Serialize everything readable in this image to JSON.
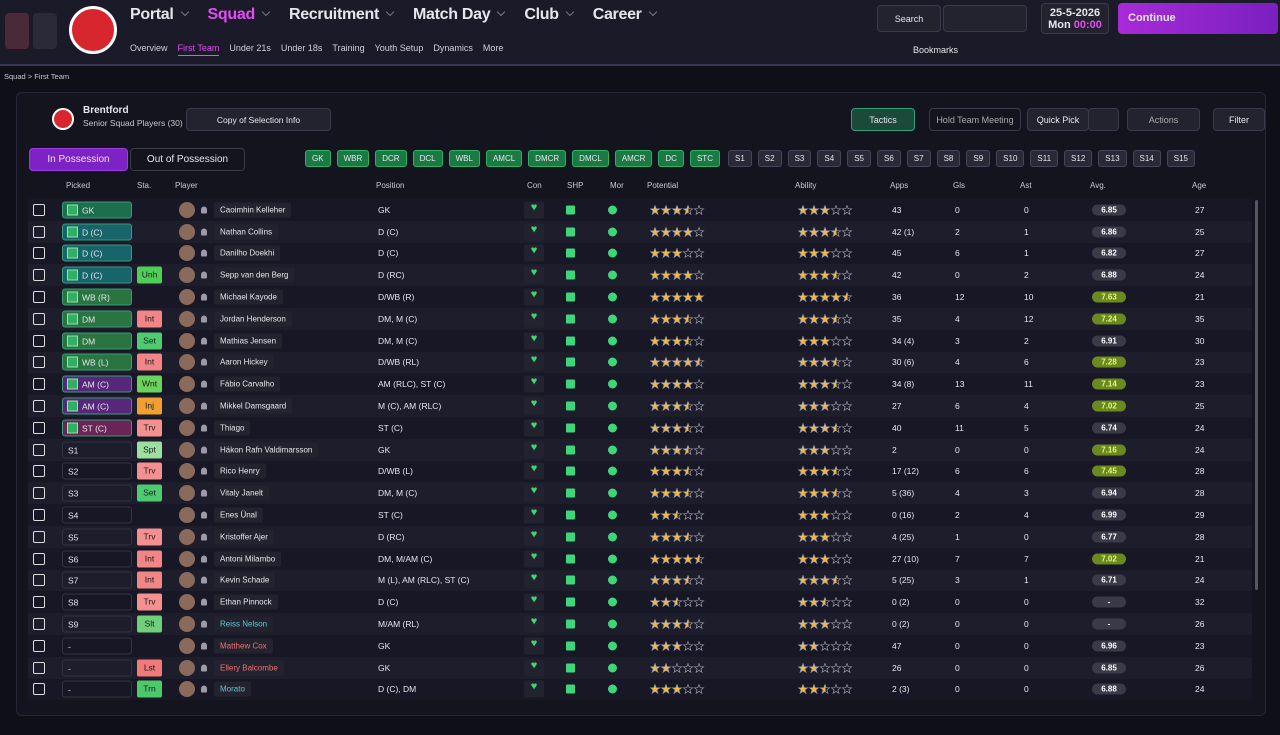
{
  "nav": {
    "menu": [
      "Portal",
      "Squad",
      "Recruitment",
      "Match Day",
      "Club",
      "Career"
    ],
    "submenu": [
      "Overview",
      "First Team",
      "Under 21s",
      "Under 18s",
      "Training",
      "Youth Setup",
      "Dynamics",
      "More"
    ],
    "search": "Search",
    "date": "25-5-2026",
    "day": "Mon",
    "time": "00:00",
    "continue": "Continue",
    "bookmarks": "Bookmarks"
  },
  "breadcrumb": [
    "Squad",
    "First Team"
  ],
  "team": {
    "name": "Brentford",
    "subtitle": "Senior Squad Players (30)",
    "selection": "Copy of Selection Info"
  },
  "actions": [
    "Tactics",
    "Hold Team Meeting",
    "Quick Pick",
    "Actions",
    "Filter"
  ],
  "tabs": [
    "In Possession",
    "Out of Possession"
  ],
  "formation": [
    "GK",
    "WBR",
    "DCR",
    "DCL",
    "WBL",
    "AMCL",
    "DMCR",
    "DMCL",
    "AMCR",
    "DC",
    "STC"
  ],
  "subs": [
    "S1",
    "S2",
    "S3",
    "S4",
    "S5",
    "S6",
    "S7",
    "S8",
    "S9",
    "S10",
    "S11",
    "S12",
    "S13",
    "S14",
    "S15"
  ],
  "columns": [
    "Picked",
    "Sta.",
    "Player",
    "Position",
    "Con",
    "SHP",
    "Mor",
    "Potential",
    "Ability",
    "Apps",
    "Gls",
    "Ast",
    "Avg.",
    "Age"
  ],
  "rows": [
    {
      "picked": "GK",
      "picked_color": "#1d6e4c",
      "player": "Caoimhin Kelleher",
      "position": "GK",
      "potential": 3.5,
      "ability": 3,
      "apps": "43",
      "gls": 0,
      "ast": 0,
      "avg": "6.85",
      "age": 27
    },
    {
      "picked": "D (C)",
      "picked_color": "#17646a",
      "player": "Nathan Collins",
      "position": "D (C)",
      "potential": 4,
      "ability": 3.5,
      "apps": "42 (1)",
      "gls": 2,
      "ast": 1,
      "avg": "6.86",
      "age": 25
    },
    {
      "picked": "D (C)",
      "picked_color": "#17646a",
      "player": "Danilho Doekhi",
      "position": "D (C)",
      "potential": 3,
      "ability": 3,
      "apps": "45",
      "gls": 6,
      "ast": 1,
      "avg": "6.82",
      "age": 27
    },
    {
      "picked": "D (C)",
      "picked_color": "#17646a",
      "sta": "Unh",
      "sta_color": "#4fcf55",
      "player": "Sepp van den Berg",
      "position": "D (RC)",
      "potential": 4,
      "ability": 3.5,
      "apps": "42",
      "gls": 0,
      "ast": 2,
      "avg": "6.88",
      "age": 24
    },
    {
      "picked": "WB (R)",
      "picked_color": "#2a7440",
      "player": "Michael Kayode",
      "position": "D/WB (R)",
      "potential": 5,
      "ability": 4.5,
      "apps": "36",
      "gls": 12,
      "ast": 10,
      "avg": "7.63",
      "age": 21,
      "highlight": true
    },
    {
      "picked": "DM",
      "picked_color": "#2a7440",
      "sta": "Int",
      "sta_color": "#f28585",
      "player": "Jordan Henderson",
      "position": "DM, M (C)",
      "potential": 3.5,
      "ability": 3.5,
      "apps": "35",
      "gls": 4,
      "ast": 12,
      "avg": "7.24",
      "age": 35,
      "highlight": true
    },
    {
      "picked": "DM",
      "picked_color": "#2a7440",
      "sta": "Set",
      "sta_color": "#4ecb71",
      "player": "Mathias Jensen",
      "position": "DM, M (C)",
      "potential": 3.5,
      "ability": 3,
      "apps": "34 (4)",
      "gls": 3,
      "ast": 2,
      "avg": "6.91",
      "age": 30
    },
    {
      "picked": "WB (L)",
      "picked_color": "#2a7440",
      "sta": "Int",
      "sta_color": "#f28585",
      "player": "Aaron Hickey",
      "position": "D/WB (RL)",
      "potential": 4.5,
      "ability": 3.5,
      "apps": "30 (6)",
      "gls": 4,
      "ast": 6,
      "avg": "7.28",
      "age": 23,
      "highlight": true
    },
    {
      "picked": "AM (C)",
      "picked_color": "#57287a",
      "sta": "Wnt",
      "sta_color": "#6bd35b",
      "player": "Fábio Carvalho",
      "position": "AM (RLC), ST (C)",
      "potential": 4,
      "ability": 3.5,
      "apps": "34 (8)",
      "gls": 13,
      "ast": 11,
      "avg": "7.14",
      "age": 23,
      "highlight": true
    },
    {
      "picked": "AM (C)",
      "picked_color": "#57287a",
      "sta": "Inj",
      "sta_color": "#f0a030",
      "player": "Mikkel Damsgaard",
      "position": "M (C), AM (RLC)",
      "potential": 3.5,
      "ability": 3,
      "apps": "27",
      "gls": 6,
      "ast": 4,
      "avg": "7.02",
      "age": 25,
      "highlight": true
    },
    {
      "picked": "ST (C)",
      "picked_color": "#6a2456",
      "sta": "Trv",
      "sta_color": "#f49090",
      "player": "Thiago",
      "position": "ST (C)",
      "potential": 3.5,
      "ability": 3.5,
      "apps": "40",
      "gls": 11,
      "ast": 5,
      "avg": "6.74",
      "age": 24
    },
    {
      "picked": "S1",
      "sta": "Spt",
      "sta_color": "#9be0a0",
      "player": "Hákon Rafn Valdimarsson",
      "position": "GK",
      "potential": 3.5,
      "ability": 3,
      "apps": "2",
      "gls": 0,
      "ast": 0,
      "avg": "7.16",
      "age": 24,
      "highlight": true
    },
    {
      "picked": "S2",
      "sta": "Trv",
      "sta_color": "#f49090",
      "player": "Rico Henry",
      "position": "D/WB (L)",
      "potential": 3.5,
      "ability": 3.5,
      "apps": "17 (12)",
      "gls": 6,
      "ast": 6,
      "avg": "7.45",
      "age": 28,
      "highlight": true
    },
    {
      "picked": "S3",
      "sta": "Set",
      "sta_color": "#4ecb71",
      "player": "Vitaly Janelt",
      "position": "DM, M (C)",
      "potential": 3.5,
      "ability": 3.5,
      "apps": "5 (36)",
      "gls": 4,
      "ast": 3,
      "avg": "6.94",
      "age": 28
    },
    {
      "picked": "S4",
      "player": "Enes Ünal",
      "position": "ST (C)",
      "potential": 2.5,
      "ability": 3,
      "apps": "0 (16)",
      "gls": 2,
      "ast": 4,
      "avg": "6.99",
      "age": 29
    },
    {
      "picked": "S5",
      "sta": "Trv",
      "sta_color": "#f49090",
      "player": "Kristoffer Ajer",
      "position": "D (RC)",
      "potential": 3.5,
      "ability": 3,
      "apps": "4 (25)",
      "gls": 1,
      "ast": 0,
      "avg": "6.77",
      "age": 28
    },
    {
      "picked": "S6",
      "sta": "Int",
      "sta_color": "#f28585",
      "player": "Antoni Milambo",
      "position": "DM, M/AM (C)",
      "potential": 4.5,
      "ability": 3,
      "apps": "27 (10)",
      "gls": 7,
      "ast": 7,
      "avg": "7.02",
      "age": 21,
      "highlight": true
    },
    {
      "picked": "S7",
      "sta": "Int",
      "sta_color": "#f28585",
      "player": "Kevin Schade",
      "position": "M (L), AM (RLC), ST (C)",
      "potential": 3.5,
      "ability": 3.5,
      "apps": "5 (25)",
      "gls": 3,
      "ast": 1,
      "avg": "6.71",
      "age": 24
    },
    {
      "picked": "S8",
      "sta": "Trv",
      "sta_color": "#f49090",
      "player": "Ethan Pinnock",
      "position": "D (C)",
      "potential": 2.5,
      "ability": 2.5,
      "apps": "0 (2)",
      "gls": 0,
      "ast": 0,
      "avg": "-",
      "age": 32
    },
    {
      "picked": "S9",
      "sta": "Slt",
      "sta_color": "#6ed07a",
      "player": "Reiss Nelson",
      "name_color": "#5fc8d8",
      "position": "M/AM (RL)",
      "potential": 3.5,
      "ability": 3,
      "apps": "0 (2)",
      "gls": 0,
      "ast": 0,
      "avg": "-",
      "age": 26
    },
    {
      "picked": "-",
      "player": "Matthew Cox",
      "name_color": "#f07070",
      "position": "GK",
      "potential": 3,
      "ability": 2,
      "apps": "47",
      "gls": 0,
      "ast": 0,
      "avg": "6.96",
      "age": 23
    },
    {
      "picked": "-",
      "sta": "Lst",
      "sta_color": "#f07a7a",
      "player": "Ellery Balcombe",
      "name_color": "#f07070",
      "position": "GK",
      "potential": 2,
      "ability": 2,
      "apps": "26",
      "gls": 0,
      "ast": 0,
      "avg": "6.85",
      "age": 26
    },
    {
      "picked": "-",
      "sta": "Trn",
      "sta_color": "#4cc96a",
      "player": "Morato",
      "name_color": "#5fc8d8",
      "position": "D (C), DM",
      "potential": 3,
      "ability": 2.5,
      "apps": "2 (3)",
      "gls": 0,
      "ast": 0,
      "avg": "6.88",
      "age": 24
    }
  ]
}
